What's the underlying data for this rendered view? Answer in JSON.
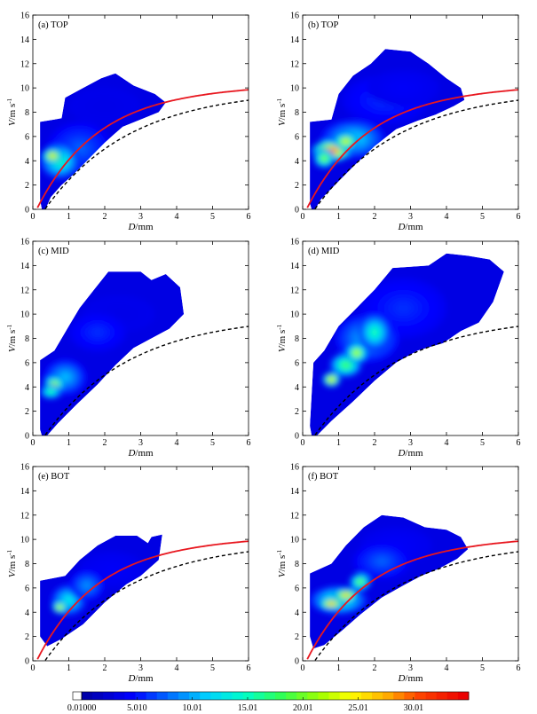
{
  "chart_data": {
    "type": "heatmap",
    "x_label": "D",
    "x_unit": "/mm",
    "y_label": "V",
    "y_unit": "/m s",
    "y_unit_sup": "-1",
    "xlim": [
      0,
      6
    ],
    "ylim": [
      0,
      16
    ],
    "x_ticks": [
      "0",
      "1",
      "2",
      "3",
      "4",
      "5",
      "6"
    ],
    "y_ticks": [
      "0",
      "2",
      "4",
      "6",
      "8",
      "10",
      "12",
      "14",
      "16"
    ],
    "colorbar": {
      "min": 0.01,
      "max": 35,
      "tick_labels": [
        "0.01000",
        "5.010",
        "10.01",
        "15.01",
        "20.01",
        "25.01",
        "30.01"
      ],
      "tick_values": [
        0.01,
        5.01,
        10.01,
        15.01,
        20.01,
        25.01,
        30.01
      ]
    },
    "panels": [
      {
        "label": "(a) TOP",
        "envelope": [
          [
            0.25,
            0
          ],
          [
            0.35,
            0
          ],
          [
            0.5,
            1
          ],
          [
            0.8,
            2
          ],
          [
            1.1,
            2.8
          ],
          [
            1.5,
            4
          ],
          [
            2.0,
            5.5
          ],
          [
            2.5,
            6.8
          ],
          [
            3.0,
            7.4
          ],
          [
            3.5,
            8.0
          ],
          [
            3.7,
            8.8
          ],
          [
            3.4,
            9.5
          ],
          [
            2.8,
            10.2
          ],
          [
            2.3,
            11.2
          ],
          [
            1.9,
            10.8
          ],
          [
            1.4,
            10.0
          ],
          [
            0.9,
            9.2
          ],
          [
            0.8,
            7.5
          ],
          [
            0.6,
            7.4
          ],
          [
            0.2,
            7.2
          ],
          [
            0.2,
            0.8
          ]
        ],
        "hotspots": [
          [
            0.55,
            4.4,
            33,
            0.28,
            0.6
          ],
          [
            0.75,
            4.0,
            18,
            0.55,
            1.5
          ],
          [
            1.3,
            5.0,
            8,
            0.9,
            2.2
          ],
          [
            2.0,
            8.5,
            3,
            1.0,
            1.5
          ]
        ],
        "red_curve": true,
        "dashed_curve": true
      },
      {
        "label": "(b) TOP",
        "envelope": [
          [
            0.25,
            0
          ],
          [
            0.35,
            0
          ],
          [
            0.5,
            0.8
          ],
          [
            0.9,
            2
          ],
          [
            1.4,
            3.5
          ],
          [
            2.0,
            5.2
          ],
          [
            2.6,
            6.6
          ],
          [
            3.2,
            7.3
          ],
          [
            3.7,
            7.8
          ],
          [
            4.2,
            8.5
          ],
          [
            4.5,
            9.0
          ],
          [
            4.4,
            10.0
          ],
          [
            4.0,
            10.8
          ],
          [
            3.5,
            12.0
          ],
          [
            3.0,
            13.0
          ],
          [
            2.3,
            13.2
          ],
          [
            1.9,
            12.0
          ],
          [
            1.4,
            11.0
          ],
          [
            1.0,
            9.5
          ],
          [
            0.8,
            7.4
          ],
          [
            0.2,
            7.2
          ],
          [
            0.2,
            0.5
          ]
        ],
        "hotspots": [
          [
            0.8,
            4.8,
            38,
            0.55,
            0.9
          ],
          [
            1.2,
            5.6,
            30,
            0.35,
            0.7
          ],
          [
            0.6,
            4.2,
            25,
            0.3,
            0.8
          ],
          [
            1.4,
            5.8,
            14,
            0.9,
            1.6
          ],
          [
            2.3,
            9.0,
            6,
            1.2,
            2.0
          ],
          [
            2.8,
            10.0,
            4,
            1.0,
            1.5
          ]
        ],
        "red_curve": true,
        "dashed_curve": true
      },
      {
        "label": "(c) MID",
        "envelope": [
          [
            0.25,
            0
          ],
          [
            0.4,
            0
          ],
          [
            0.7,
            1
          ],
          [
            1.2,
            2.5
          ],
          [
            1.8,
            4.2
          ],
          [
            2.3,
            5.8
          ],
          [
            2.8,
            7.2
          ],
          [
            3.3,
            8.0
          ],
          [
            3.8,
            8.8
          ],
          [
            4.2,
            10.0
          ],
          [
            4.1,
            12.2
          ],
          [
            3.7,
            13.3
          ],
          [
            3.3,
            12.8
          ],
          [
            3.0,
            13.5
          ],
          [
            2.1,
            13.5
          ],
          [
            1.7,
            12.0
          ],
          [
            1.3,
            10.5
          ],
          [
            1.0,
            9.0
          ],
          [
            0.6,
            7.0
          ],
          [
            0.2,
            6.2
          ],
          [
            0.2,
            0.5
          ]
        ],
        "hotspots": [
          [
            0.6,
            4.2,
            28,
            0.3,
            0.7
          ],
          [
            0.5,
            3.6,
            20,
            0.3,
            0.6
          ],
          [
            0.9,
            4.8,
            12,
            0.6,
            1.5
          ],
          [
            1.8,
            8.5,
            6,
            0.8,
            1.6
          ],
          [
            2.4,
            10.0,
            3,
            1.0,
            1.5
          ]
        ],
        "red_curve": false,
        "dashed_curve": true
      },
      {
        "label": "(d) MID",
        "envelope": [
          [
            0.25,
            0
          ],
          [
            0.4,
            0
          ],
          [
            0.8,
            1.2
          ],
          [
            1.4,
            2.8
          ],
          [
            2.0,
            4.5
          ],
          [
            2.6,
            6.0
          ],
          [
            3.2,
            7.0
          ],
          [
            3.9,
            7.6
          ],
          [
            4.4,
            8.6
          ],
          [
            4.9,
            9.3
          ],
          [
            5.3,
            11.0
          ],
          [
            5.6,
            13.5
          ],
          [
            5.2,
            14.5
          ],
          [
            4.6,
            14.8
          ],
          [
            4.0,
            15.0
          ],
          [
            3.5,
            14.0
          ],
          [
            2.5,
            13.8
          ],
          [
            2.0,
            12.0
          ],
          [
            1.4,
            10.2
          ],
          [
            1.0,
            9.0
          ],
          [
            0.6,
            7.0
          ],
          [
            0.3,
            6.0
          ],
          [
            0.2,
            0.8
          ]
        ],
        "hotspots": [
          [
            0.8,
            4.6,
            32,
            0.25,
            0.6
          ],
          [
            1.5,
            6.8,
            28,
            0.3,
            0.8
          ],
          [
            1.2,
            5.8,
            22,
            0.45,
            1.0
          ],
          [
            2.0,
            8.5,
            18,
            0.45,
            1.5
          ],
          [
            1.8,
            8.0,
            12,
            0.9,
            2.0
          ],
          [
            2.8,
            10.5,
            6,
            1.2,
            2.5
          ]
        ],
        "red_curve": false,
        "dashed_curve": true
      },
      {
        "label": "(e) BOT",
        "envelope": [
          [
            0.4,
            1.2
          ],
          [
            0.8,
            1.8
          ],
          [
            1.4,
            3.0
          ],
          [
            2.0,
            4.8
          ],
          [
            2.6,
            6.3
          ],
          [
            3.0,
            7.0
          ],
          [
            3.5,
            8.3
          ],
          [
            3.6,
            10.4
          ],
          [
            3.3,
            10.2
          ],
          [
            3.2,
            9.7
          ],
          [
            2.9,
            10.3
          ],
          [
            2.3,
            10.3
          ],
          [
            1.8,
            9.5
          ],
          [
            1.3,
            8.3
          ],
          [
            0.9,
            7.0
          ],
          [
            0.2,
            6.6
          ],
          [
            0.2,
            2.0
          ]
        ],
        "hotspots": [
          [
            0.75,
            4.4,
            30,
            0.22,
            0.5
          ],
          [
            1.0,
            5.0,
            15,
            0.5,
            1.3
          ],
          [
            1.5,
            6.2,
            10,
            0.5,
            1.3
          ],
          [
            2.2,
            7.5,
            4,
            0.9,
            1.5
          ]
        ],
        "red_curve": true,
        "dashed_curve": true
      },
      {
        "label": "(f) BOT",
        "envelope": [
          [
            0.3,
            1.0
          ],
          [
            0.6,
            1.3
          ],
          [
            1.1,
            2.5
          ],
          [
            1.6,
            3.8
          ],
          [
            2.2,
            5.2
          ],
          [
            2.8,
            6.2
          ],
          [
            3.3,
            7.0
          ],
          [
            3.8,
            7.6
          ],
          [
            4.3,
            8.4
          ],
          [
            4.6,
            9.2
          ],
          [
            4.4,
            10.2
          ],
          [
            4.0,
            10.8
          ],
          [
            3.4,
            11.0
          ],
          [
            2.8,
            11.8
          ],
          [
            2.2,
            12.0
          ],
          [
            1.7,
            11.0
          ],
          [
            1.2,
            9.5
          ],
          [
            0.8,
            8.0
          ],
          [
            0.2,
            7.2
          ],
          [
            0.2,
            2.0
          ]
        ],
        "hotspots": [
          [
            0.8,
            4.7,
            36,
            0.35,
            0.45
          ],
          [
            1.2,
            5.4,
            34,
            0.35,
            0.55
          ],
          [
            1.6,
            6.5,
            24,
            0.3,
            0.7
          ],
          [
            1.0,
            5.0,
            18,
            0.8,
            1.2
          ],
          [
            2.2,
            8.2,
            8,
            0.8,
            1.5
          ],
          [
            2.6,
            9.5,
            4,
            1.0,
            1.5
          ]
        ],
        "red_curve": true,
        "dashed_curve": true
      }
    ]
  }
}
